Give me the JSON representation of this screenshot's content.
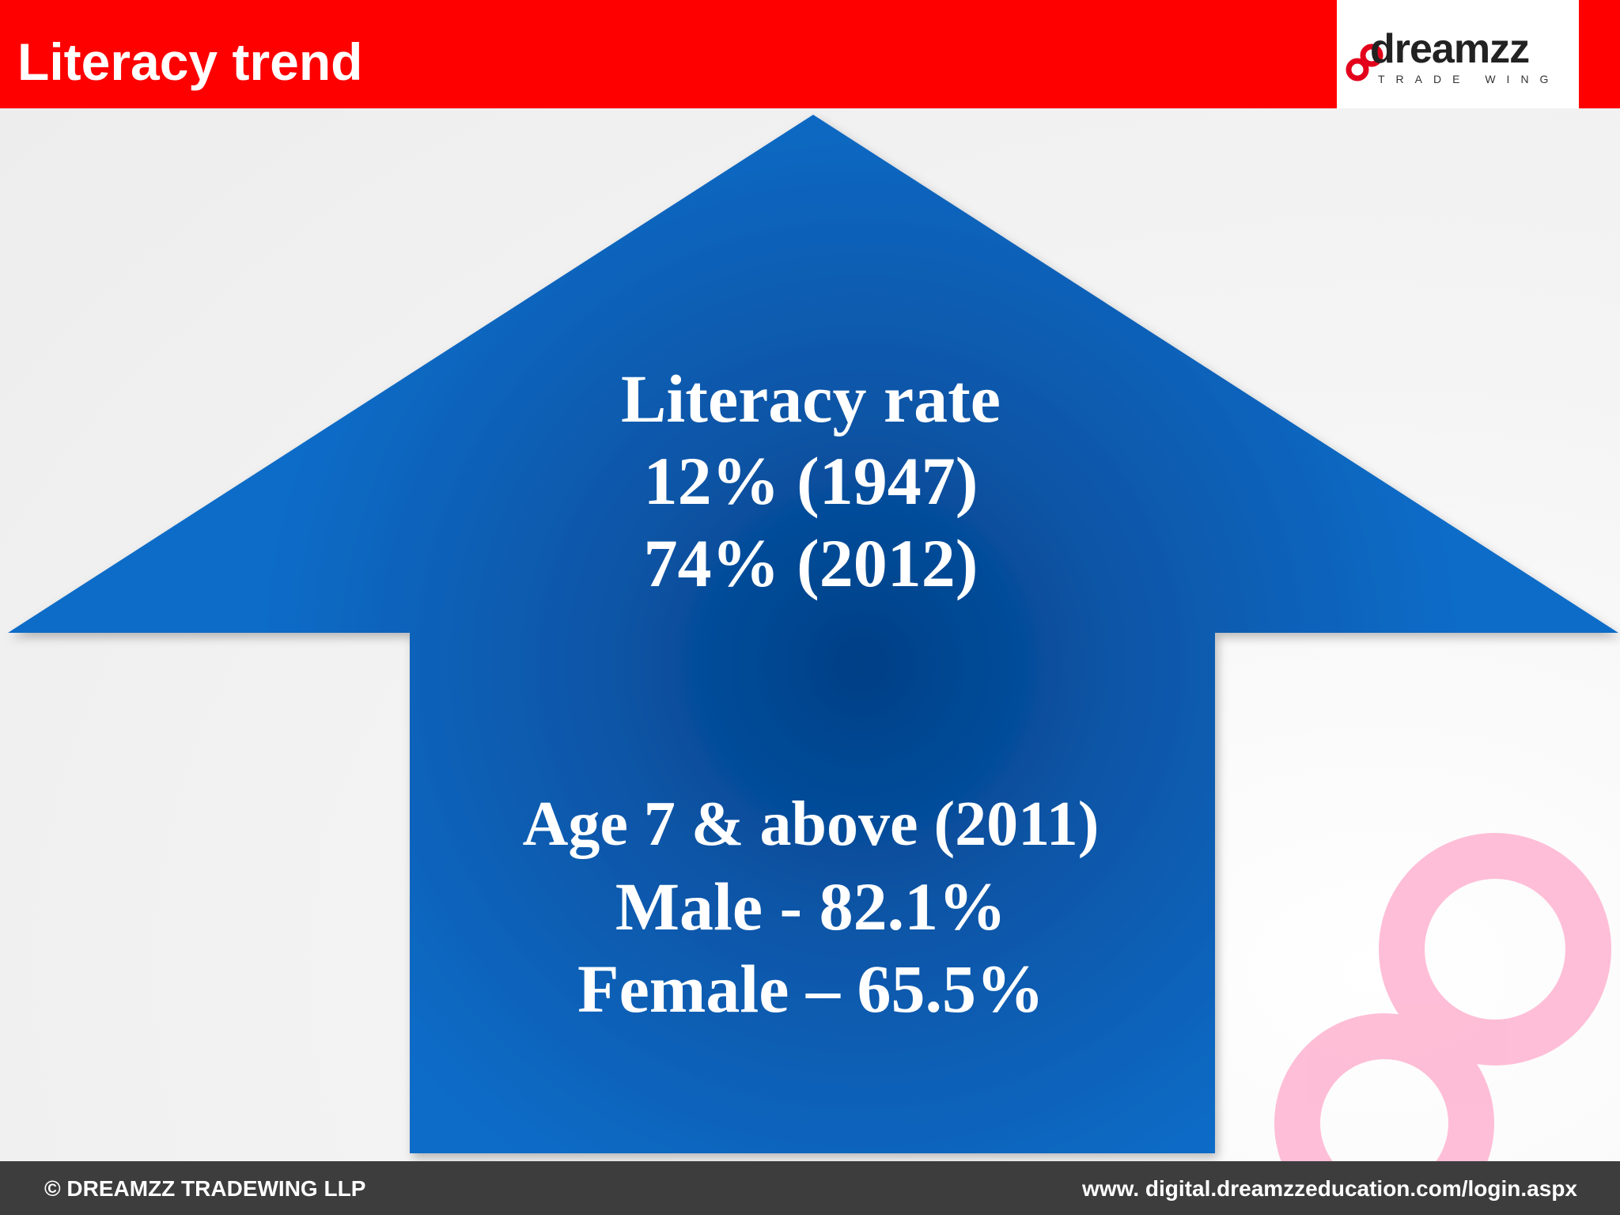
{
  "header": {
    "title": "Literacy trend",
    "background_color": "#ff0000"
  },
  "logo": {
    "word": "dreamzz",
    "tagline": "TRADE WING",
    "icon": "infinity-loop-icon",
    "accent_color": "#e3001b"
  },
  "arrow": {
    "color": "#0a5cb0",
    "shape": "up-arrow",
    "top_block": [
      "Literacy rate",
      "12% (1947)",
      "74% (2012)"
    ],
    "bottom_block": [
      "Age 7 & above (2011)",
      "Male - 82.1%",
      "Female – 65.5%"
    ]
  },
  "watermark": {
    "icon": "infinity-loop-watermark-icon",
    "color": "#ff9fc4"
  },
  "footer": {
    "copyright": "© DREAMZZ TRADEWING LLP",
    "url": "www. digital.dreamzzeducation.com/login.aspx",
    "background_color": "#3d3d3d"
  }
}
